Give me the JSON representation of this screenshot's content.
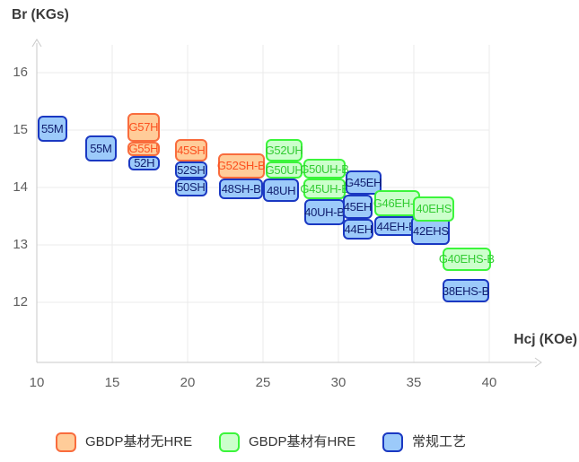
{
  "chart_data": {
    "type": "box",
    "title": "",
    "xlabel": "Hcj (KOe)",
    "ylabel": "Br (KGs)",
    "x_ticks": [
      10,
      15,
      20,
      25,
      30,
      35,
      40
    ],
    "y_ticks": [
      12,
      13,
      14,
      15,
      16
    ],
    "xlim": [
      10,
      43.4
    ],
    "ylim": [
      10.95,
      16.55
    ],
    "grid": true,
    "legend_position": "bottom",
    "groups": {
      "orange": {
        "label": "GBDP基材无HRE",
        "fill": "#ffcc99",
        "border": "#f96c3d",
        "text": "#fc501f"
      },
      "green": {
        "label": "GBDP基材有HRE",
        "fill": "#ccffcc",
        "border": "#3bf53b",
        "text": "#33cc33"
      },
      "blue": {
        "label": "常规工艺",
        "fill": "#9ccafa",
        "border": "#1a38c2",
        "text": "#122070"
      }
    },
    "legend_order": [
      "orange",
      "green",
      "blue"
    ],
    "boxes": [
      {
        "label": "55M",
        "group": "blue",
        "hcj": [
          10.05,
          12.0
        ],
        "br": [
          14.8,
          15.25
        ]
      },
      {
        "label": "55M",
        "group": "blue",
        "hcj": [
          13.2,
          15.3
        ],
        "br": [
          14.45,
          14.9
        ]
      },
      {
        "label": "G57H",
        "group": "orange",
        "hcj": [
          16.0,
          18.15
        ],
        "br": [
          14.8,
          15.3
        ]
      },
      {
        "label": "G55H",
        "group": "orange",
        "hcj": [
          16.0,
          18.15
        ],
        "br": [
          14.55,
          14.8
        ]
      },
      {
        "label": "52H",
        "group": "blue",
        "hcj": [
          16.1,
          18.15
        ],
        "br": [
          14.3,
          14.55
        ]
      },
      {
        "label": "45SH",
        "group": "orange",
        "hcj": [
          19.15,
          21.3
        ],
        "br": [
          14.45,
          14.85
        ]
      },
      {
        "label": "52SH",
        "group": "blue",
        "hcj": [
          19.15,
          21.3
        ],
        "br": [
          14.15,
          14.45
        ]
      },
      {
        "label": "50SH",
        "group": "blue",
        "hcj": [
          19.15,
          21.3
        ],
        "br": [
          13.85,
          14.15
        ]
      },
      {
        "label": "G52SH-B",
        "group": "orange",
        "hcj": [
          22.0,
          25.1
        ],
        "br": [
          14.15,
          14.6
        ]
      },
      {
        "label": "48SH-B",
        "group": "blue",
        "hcj": [
          22.1,
          25.0
        ],
        "br": [
          13.8,
          14.15
        ]
      },
      {
        "label": "G52UH",
        "group": "green",
        "hcj": [
          25.2,
          27.6
        ],
        "br": [
          14.45,
          14.85
        ]
      },
      {
        "label": "G50UH",
        "group": "green",
        "hcj": [
          25.2,
          27.6
        ],
        "br": [
          14.15,
          14.45
        ]
      },
      {
        "label": "48UH",
        "group": "blue",
        "hcj": [
          25.0,
          27.4
        ],
        "br": [
          13.75,
          14.15
        ]
      },
      {
        "label": "G50UH-B",
        "group": "green",
        "hcj": [
          27.65,
          30.5
        ],
        "br": [
          14.15,
          14.5
        ]
      },
      {
        "label": "G45UH-B",
        "group": "green",
        "hcj": [
          27.65,
          30.5
        ],
        "br": [
          13.8,
          14.15
        ]
      },
      {
        "label": "40UH-B",
        "group": "blue",
        "hcj": [
          27.75,
          30.4
        ],
        "br": [
          13.35,
          13.8
        ]
      },
      {
        "label": "G45EH",
        "group": "blue",
        "hcj": [
          30.45,
          32.85
        ],
        "br": [
          13.88,
          14.3
        ]
      },
      {
        "label": "45EH",
        "group": "blue",
        "hcj": [
          30.3,
          32.25
        ],
        "br": [
          13.45,
          13.88
        ]
      },
      {
        "label": "44EH",
        "group": "blue",
        "hcj": [
          30.3,
          32.35
        ],
        "br": [
          13.1,
          13.45
        ]
      },
      {
        "label": "G46EH-B",
        "group": "green",
        "hcj": [
          32.4,
          35.4
        ],
        "br": [
          13.5,
          13.95
        ]
      },
      {
        "label": "44EH-B",
        "group": "blue",
        "hcj": [
          32.4,
          35.3
        ],
        "br": [
          13.15,
          13.5
        ]
      },
      {
        "label": "42EHS",
        "group": "blue",
        "hcj": [
          34.85,
          37.4
        ],
        "br": [
          13.0,
          13.5
        ]
      },
      {
        "label": "40EHS",
        "group": "green",
        "hcj": [
          34.95,
          37.7
        ],
        "br": [
          13.4,
          13.85
        ]
      },
      {
        "label": "G40EHS-B",
        "group": "green",
        "hcj": [
          36.9,
          40.1
        ],
        "br": [
          12.55,
          12.95
        ]
      },
      {
        "label": "38EHS-B",
        "group": "blue",
        "hcj": [
          36.9,
          40.0
        ],
        "br": [
          12.0,
          12.4
        ]
      }
    ]
  }
}
